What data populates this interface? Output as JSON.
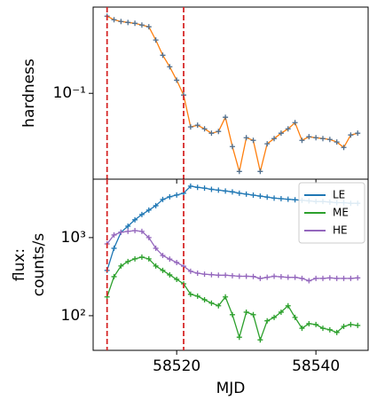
{
  "chart_data": [
    {
      "type": "line",
      "ylabel": "hardness",
      "log_y": true,
      "x": [
        58510,
        58511,
        58512,
        58513,
        58514,
        58515,
        58516,
        58517,
        58518,
        58519,
        58520,
        58521,
        58522,
        58523,
        58524,
        58525,
        58526,
        58527,
        58528,
        58529,
        58530,
        58531,
        58532,
        58533,
        58534,
        58535,
        58536,
        58537,
        58538,
        58539,
        58540,
        58541,
        58542,
        58543,
        58544,
        58545,
        58546
      ],
      "series": [
        {
          "name": "hardness",
          "color": "#ff7f0e",
          "marker_color": "#4f6f8f",
          "values": [
            0.467,
            0.435,
            0.42,
            0.412,
            0.405,
            0.391,
            0.378,
            0.29,
            0.214,
            0.17,
            0.13,
            0.0966,
            0.0511,
            0.0529,
            0.0492,
            0.0451,
            0.0467,
            0.062,
            0.0345,
            0.021,
            0.0412,
            0.0391,
            0.021,
            0.0365,
            0.0405,
            0.0451,
            0.0492,
            0.0557,
            0.0391,
            0.042,
            0.0412,
            0.0405,
            0.0398,
            0.0378,
            0.0339,
            0.0435,
            0.0451
          ]
        }
      ],
      "xlim": [
        58508,
        58547.5
      ],
      "xticks": [
        58520,
        58540
      ],
      "ylim": [
        0.018,
        0.56
      ],
      "yticks": [
        {
          "value": 0.1,
          "label": "10⁻¹"
        }
      ],
      "vlines": [
        58510,
        58521
      ],
      "vline_color": "#d62728"
    },
    {
      "type": "line",
      "xlabel": "MJD",
      "ylabel": [
        "flux:",
        "counts/s"
      ],
      "log_y": true,
      "legend": "upper right",
      "x": [
        58510,
        58511,
        58512,
        58513,
        58514,
        58515,
        58516,
        58517,
        58518,
        58519,
        58520,
        58521,
        58522,
        58523,
        58524,
        58525,
        58526,
        58527,
        58528,
        58529,
        58530,
        58531,
        58532,
        58533,
        58534,
        58535,
        58536,
        58537,
        58538,
        58539,
        58540,
        58541,
        58542,
        58543,
        58544,
        58545,
        58546
      ],
      "series": [
        {
          "name": "LE",
          "color": "#1f77b4",
          "values": [
            380,
            730,
            1170,
            1400,
            1690,
            1975,
            2250,
            2560,
            3080,
            3330,
            3510,
            3700,
            4560,
            4400,
            4300,
            4150,
            4050,
            3950,
            3850,
            3700,
            3600,
            3500,
            3400,
            3300,
            3200,
            3150,
            3100,
            3050,
            3000,
            2950,
            2900,
            2900,
            2850,
            2800,
            2800,
            2750,
            2750
          ]
        },
        {
          "name": "ME",
          "color": "#2ca02c",
          "values": [
            174,
            316,
            433,
            494,
            534,
            562,
            534,
            433,
            380,
            333,
            292,
            256,
            188,
            178,
            160,
            145,
            134,
            174,
            103,
            53,
            111,
            103,
            49,
            86,
            95,
            111,
            134,
            95,
            69,
            79,
            77,
            69,
            66,
            61,
            73,
            77,
            75
          ]
        },
        {
          "name": "HE",
          "color": "#9467bd",
          "values": [
            830,
            1080,
            1170,
            1200,
            1230,
            1200,
            1000,
            730,
            590,
            530,
            480,
            430,
            370,
            350,
            340,
            335,
            330,
            330,
            325,
            320,
            320,
            318,
            300,
            310,
            320,
            315,
            310,
            310,
            300,
            280,
            300,
            300,
            305,
            300,
            300,
            300,
            305
          ]
        }
      ],
      "xlim": [
        58508,
        58547.5
      ],
      "xticks": [
        58520,
        58540
      ],
      "ylim": [
        36,
        5600
      ],
      "yticks": [
        {
          "value": 100,
          "label": "10²"
        },
        {
          "value": 1000,
          "label": "10³"
        }
      ],
      "vlines": [
        58510,
        58521
      ],
      "vline_color": "#d62728"
    }
  ]
}
